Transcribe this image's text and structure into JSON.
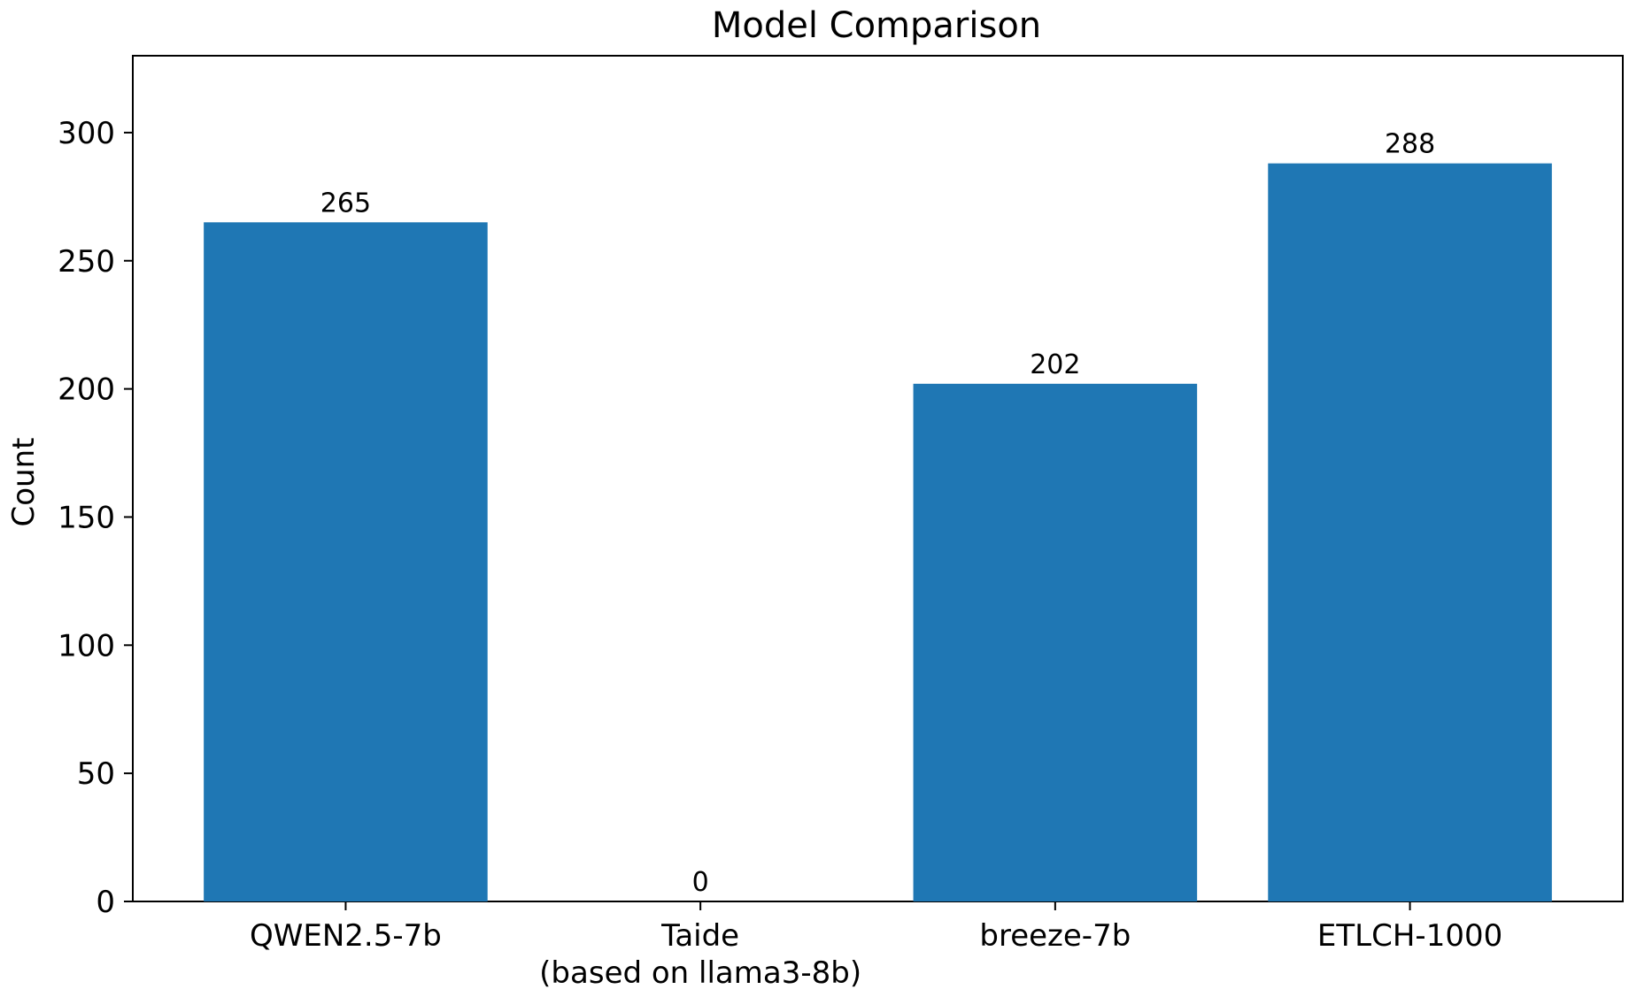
{
  "chart_data": {
    "type": "bar",
    "title": "Model Comparison",
    "xlabel": "",
    "ylabel": "Count",
    "categories": [
      [
        "QWEN2.5-7b"
      ],
      [
        "Taide",
        "(based on llama3-8b)"
      ],
      [
        "breeze-7b"
      ],
      [
        "ETLCH-1000"
      ]
    ],
    "values": [
      265,
      0,
      202,
      288
    ],
    "data_labels": [
      "265",
      "0",
      "202",
      "288"
    ],
    "ylim": [
      0,
      330
    ],
    "yticks": [
      0,
      50,
      100,
      150,
      200,
      250,
      300
    ],
    "grid": false,
    "legend": "none",
    "bar_color": "#1f77b4"
  }
}
